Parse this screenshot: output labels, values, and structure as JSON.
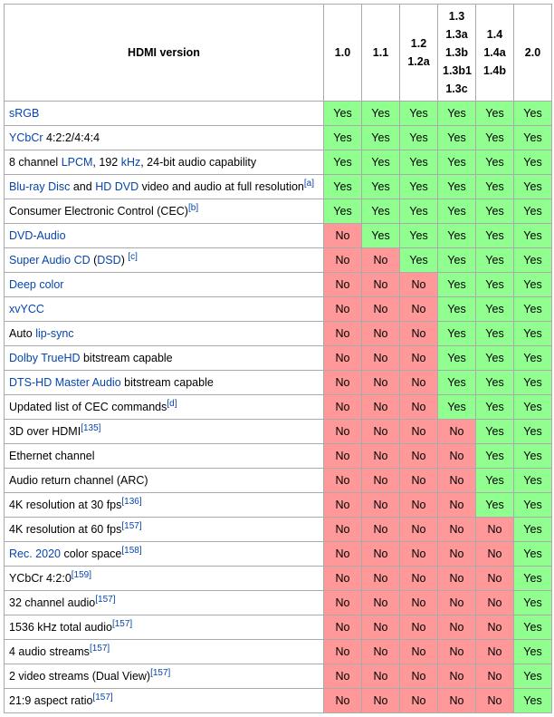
{
  "colors": {
    "yes_bg": "#90ff90",
    "no_bg": "#ff9999",
    "link": "#0645ad",
    "border": "#aaa"
  },
  "header": {
    "feature_col": "HDMI version",
    "versions": [
      [
        "1.0"
      ],
      [
        "1.1"
      ],
      [
        "1.2",
        "1.2a"
      ],
      [
        "1.3",
        "1.3a",
        "1.3b",
        "1.3b1",
        "1.3c"
      ],
      [
        "1.4",
        "1.4a",
        "1.4b"
      ],
      [
        "2.0"
      ]
    ]
  },
  "cell_text": {
    "yes": "Yes",
    "no": "No"
  },
  "rows": [
    {
      "label_html": "<a>sRGB</a>",
      "cells": [
        "Yes",
        "Yes",
        "Yes",
        "Yes",
        "Yes",
        "Yes"
      ]
    },
    {
      "label_html": "<a>YCbCr</a> 4:2:2/4:4:4",
      "cells": [
        "Yes",
        "Yes",
        "Yes",
        "Yes",
        "Yes",
        "Yes"
      ]
    },
    {
      "label_html": "8 channel <a>LPCM</a>, 192 <a>kHz</a>, 24-bit audio capability",
      "cells": [
        "Yes",
        "Yes",
        "Yes",
        "Yes",
        "Yes",
        "Yes"
      ]
    },
    {
      "label_html": "<a>Blu-ray Disc</a> and <a>HD DVD</a> video and audio at full resolution<sup><a>[a]</a></sup>",
      "cells": [
        "Yes",
        "Yes",
        "Yes",
        "Yes",
        "Yes",
        "Yes"
      ]
    },
    {
      "label_html": "Consumer Electronic Control (CEC)<sup><a>[b]</a></sup>",
      "cells": [
        "Yes",
        "Yes",
        "Yes",
        "Yes",
        "Yes",
        "Yes"
      ]
    },
    {
      "label_html": "<a>DVD-Audio</a>",
      "cells": [
        "No",
        "Yes",
        "Yes",
        "Yes",
        "Yes",
        "Yes"
      ]
    },
    {
      "label_html": "<a>Super Audio CD</a> (<a>DSD</a>) <sup><a>[c]</a></sup>",
      "cells": [
        "No",
        "No",
        "Yes",
        "Yes",
        "Yes",
        "Yes"
      ]
    },
    {
      "label_html": "<a>Deep color</a>",
      "cells": [
        "No",
        "No",
        "No",
        "Yes",
        "Yes",
        "Yes"
      ]
    },
    {
      "label_html": "<a>xvYCC</a>",
      "cells": [
        "No",
        "No",
        "No",
        "Yes",
        "Yes",
        "Yes"
      ]
    },
    {
      "label_html": "Auto <a>lip-sync</a>",
      "cells": [
        "No",
        "No",
        "No",
        "Yes",
        "Yes",
        "Yes"
      ]
    },
    {
      "label_html": "<a>Dolby TrueHD</a> bitstream capable",
      "cells": [
        "No",
        "No",
        "No",
        "Yes",
        "Yes",
        "Yes"
      ]
    },
    {
      "label_html": "<a>DTS-HD Master Audio</a> bitstream capable",
      "cells": [
        "No",
        "No",
        "No",
        "Yes",
        "Yes",
        "Yes"
      ]
    },
    {
      "label_html": "Updated list of CEC commands<sup><a>[d]</a></sup>",
      "cells": [
        "No",
        "No",
        "No",
        "Yes",
        "Yes",
        "Yes"
      ]
    },
    {
      "label_html": "3D over HDMI<sup><a>[135]</a></sup>",
      "cells": [
        "No",
        "No",
        "No",
        "No",
        "Yes",
        "Yes"
      ]
    },
    {
      "label_html": "Ethernet channel",
      "cells": [
        "No",
        "No",
        "No",
        "No",
        "Yes",
        "Yes"
      ]
    },
    {
      "label_html": "Audio return channel (ARC)",
      "cells": [
        "No",
        "No",
        "No",
        "No",
        "Yes",
        "Yes"
      ]
    },
    {
      "label_html": "4K resolution at 30 fps<sup><a>[136]</a></sup>",
      "cells": [
        "No",
        "No",
        "No",
        "No",
        "Yes",
        "Yes"
      ]
    },
    {
      "label_html": "4K resolution at 60 fps<sup><a>[157]</a></sup>",
      "cells": [
        "No",
        "No",
        "No",
        "No",
        "No",
        "Yes"
      ]
    },
    {
      "label_html": "<a>Rec. 2020</a> color space<sup><a>[158]</a></sup>",
      "cells": [
        "No",
        "No",
        "No",
        "No",
        "No",
        "Yes"
      ]
    },
    {
      "label_html": "YCbCr 4:2:0<sup><a>[159]</a></sup>",
      "cells": [
        "No",
        "No",
        "No",
        "No",
        "No",
        "Yes"
      ]
    },
    {
      "label_html": "32 channel audio<sup><a>[157]</a></sup>",
      "cells": [
        "No",
        "No",
        "No",
        "No",
        "No",
        "Yes"
      ]
    },
    {
      "label_html": "1536 kHz total audio<sup><a>[157]</a></sup>",
      "cells": [
        "No",
        "No",
        "No",
        "No",
        "No",
        "Yes"
      ]
    },
    {
      "label_html": "4 audio streams<sup><a>[157]</a></sup>",
      "cells": [
        "No",
        "No",
        "No",
        "No",
        "No",
        "Yes"
      ]
    },
    {
      "label_html": "2 video streams (Dual View)<sup><a>[157]</a></sup>",
      "cells": [
        "No",
        "No",
        "No",
        "No",
        "No",
        "Yes"
      ]
    },
    {
      "label_html": "21:9 aspect ratio<sup><a>[157]</a></sup>",
      "cells": [
        "No",
        "No",
        "No",
        "No",
        "No",
        "Yes"
      ]
    }
  ]
}
